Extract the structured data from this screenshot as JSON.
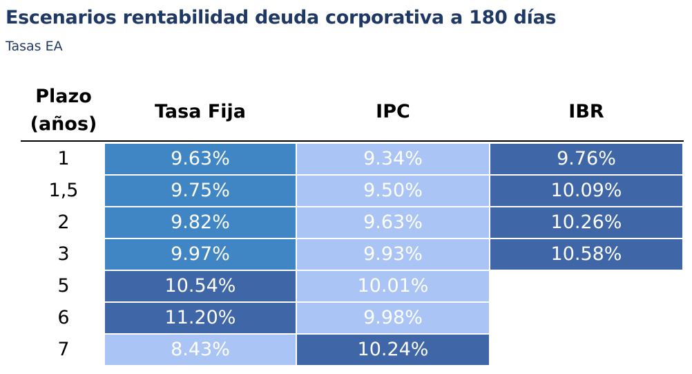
{
  "title": "Escenarios rentabilidad deuda corporativa a 180 días",
  "subtitle": "Tasas EA",
  "colors": {
    "title": "#1f3864",
    "light": "#a9c4f5",
    "medium": "#4086c4",
    "dark": "#3f66a6"
  },
  "chart_data": {
    "type": "table",
    "title": "Escenarios rentabilidad deuda corporativa a 180 días",
    "subtitle": "Tasas EA",
    "row_header": [
      "Plazo",
      "(años)"
    ],
    "columns": [
      "Tasa Fija",
      "IPC",
      "IBR"
    ],
    "rows": [
      {
        "plazo": "1",
        "values": [
          "9.63%",
          "9.34%",
          "9.76%"
        ],
        "shades": [
          "medium",
          "light",
          "dark"
        ]
      },
      {
        "plazo": "1,5",
        "values": [
          "9.75%",
          "9.50%",
          "10.09%"
        ],
        "shades": [
          "medium",
          "light",
          "dark"
        ]
      },
      {
        "plazo": "2",
        "values": [
          "9.82%",
          "9.63%",
          "10.26%"
        ],
        "shades": [
          "medium",
          "light",
          "dark"
        ]
      },
      {
        "plazo": "3",
        "values": [
          "9.97%",
          "9.93%",
          "10.58%"
        ],
        "shades": [
          "medium",
          "light",
          "dark"
        ]
      },
      {
        "plazo": "5",
        "values": [
          "10.54%",
          "10.01%",
          ""
        ],
        "shades": [
          "dark",
          "light",
          "none"
        ]
      },
      {
        "plazo": "6",
        "values": [
          "11.20%",
          "9.98%",
          ""
        ],
        "shades": [
          "dark",
          "light",
          "none"
        ]
      },
      {
        "plazo": "7",
        "values": [
          "8.43%",
          "10.24%",
          ""
        ],
        "shades": [
          "light",
          "dark",
          "none"
        ]
      }
    ]
  }
}
